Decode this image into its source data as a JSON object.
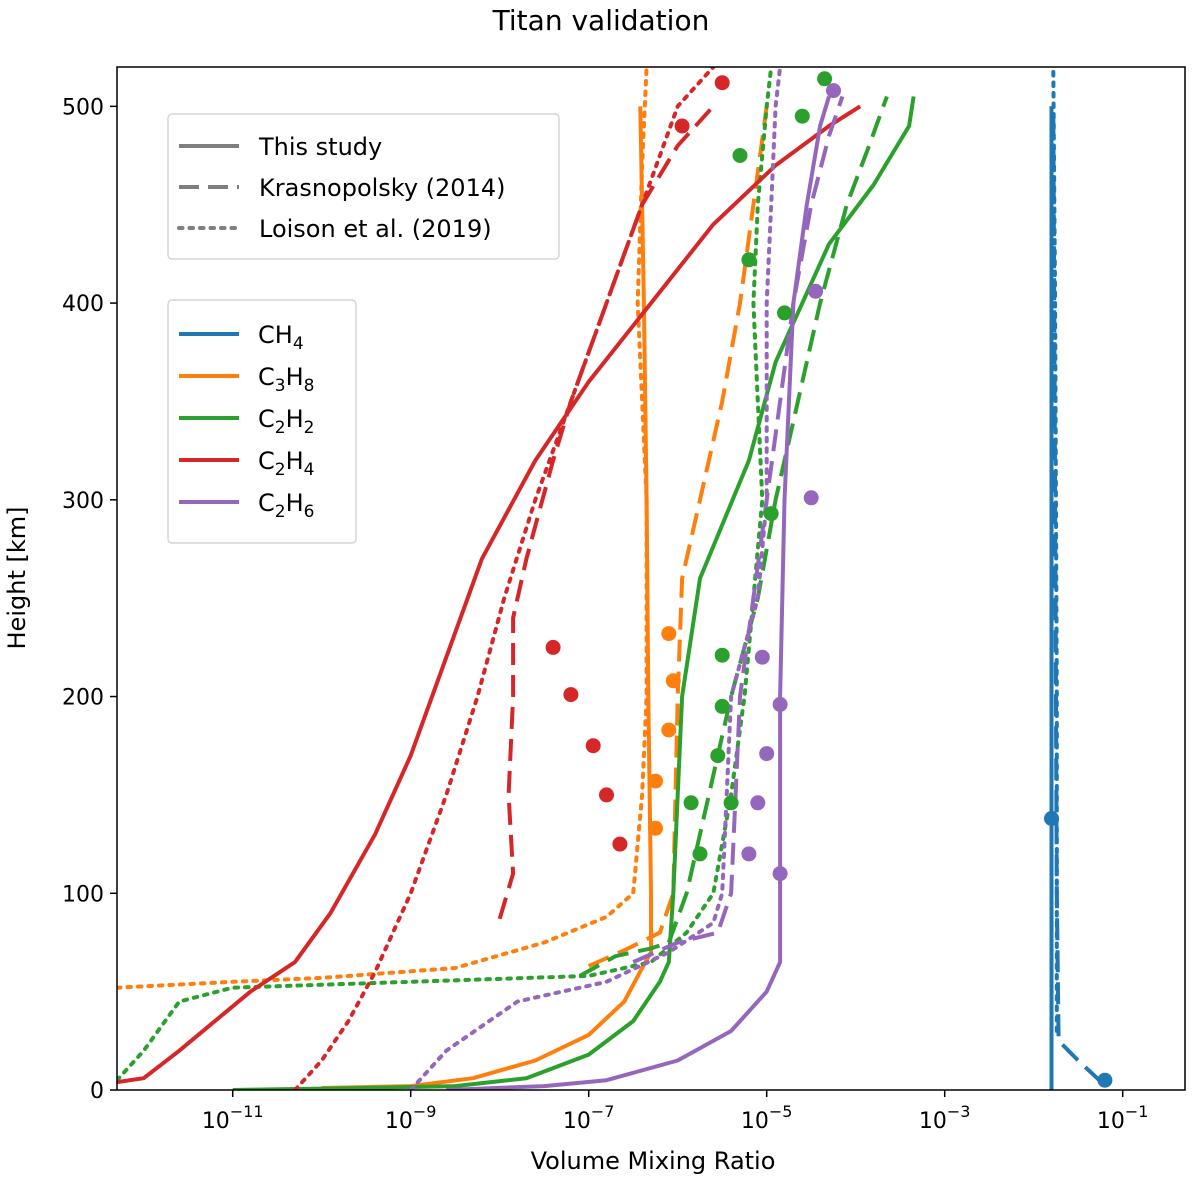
{
  "chart_data": {
    "type": "line",
    "title": "Titan validation",
    "xlabel": "Volume Mixing Ratio",
    "ylabel": "Height [km]",
    "xscale": "log",
    "xlim_log10": [
      -12.3,
      -0.3
    ],
    "ylim": [
      0,
      520
    ],
    "xticks": [
      {
        "log10": -11,
        "base": "10",
        "exp": "−11"
      },
      {
        "log10": -9,
        "base": "10",
        "exp": "−9"
      },
      {
        "log10": -7,
        "base": "10",
        "exp": "−7"
      },
      {
        "log10": -5,
        "base": "10",
        "exp": "−5"
      },
      {
        "log10": -3,
        "base": "10",
        "exp": "−3"
      },
      {
        "log10": -1,
        "base": "10",
        "exp": "−1"
      }
    ],
    "yticks": [
      0,
      100,
      200,
      300,
      400,
      500
    ],
    "style_legend": {
      "placement": "upper-left",
      "items": [
        {
          "label": "This study",
          "style": "solid"
        },
        {
          "label": "Krasnopolsky (2014)",
          "style": "dashed"
        },
        {
          "label": "Loison et al. (2019)",
          "style": "dotted"
        }
      ]
    },
    "species_legend": {
      "placement": "upper-left",
      "items": [
        {
          "label": "CH4",
          "main": "CH",
          "sub1": "4",
          "mid": "",
          "sub2": "",
          "color": "#1f77b4"
        },
        {
          "label": "C3H8",
          "main": "C",
          "sub1": "3",
          "mid": "H",
          "sub2": "8",
          "color": "#ff7f0e"
        },
        {
          "label": "C2H2",
          "main": "C",
          "sub1": "2",
          "mid": "H",
          "sub2": "2",
          "color": "#2ca02c"
        },
        {
          "label": "C2H4",
          "main": "C",
          "sub1": "2",
          "mid": "H",
          "sub2": "4",
          "color": "#d62728"
        },
        {
          "label": "C2H6",
          "main": "C",
          "sub1": "2",
          "mid": "H",
          "sub2": "6",
          "color": "#9467bd"
        }
      ]
    },
    "series": [
      {
        "name": "CH4 - This study",
        "species": "CH4",
        "color": "#1f77b4",
        "style": "solid",
        "points": [
          [
            -1.8,
            0
          ],
          [
            -1.8,
            100
          ],
          [
            -1.8,
            300
          ],
          [
            -1.8,
            500
          ]
        ]
      },
      {
        "name": "CH4 - Krasnopolsky (2014)",
        "species": "CH4",
        "color": "#1f77b4",
        "style": "dashed",
        "points": [
          [
            -1.24,
            4
          ],
          [
            -1.5,
            15
          ],
          [
            -1.72,
            25
          ],
          [
            -1.74,
            100
          ],
          [
            -1.76,
            300
          ],
          [
            -1.78,
            500
          ]
        ]
      },
      {
        "name": "CH4 - Loison et al. (2019)",
        "species": "CH4",
        "color": "#1f77b4",
        "style": "dotted",
        "points": [
          [
            -1.74,
            30
          ],
          [
            -1.74,
            200
          ],
          [
            -1.76,
            400
          ],
          [
            -1.78,
            520
          ]
        ]
      },
      {
        "name": "C3H8 - This study",
        "species": "C3H8",
        "color": "#ff7f0e",
        "style": "solid",
        "points": [
          [
            -10,
            1
          ],
          [
            -9,
            2
          ],
          [
            -8.3,
            6
          ],
          [
            -7.6,
            15
          ],
          [
            -7.0,
            28
          ],
          [
            -6.6,
            45
          ],
          [
            -6.4,
            62
          ],
          [
            -6.3,
            70
          ],
          [
            -6.3,
            100
          ],
          [
            -6.33,
            200
          ],
          [
            -6.35,
            300
          ],
          [
            -6.38,
            400
          ],
          [
            -6.42,
            500
          ]
        ]
      },
      {
        "name": "C3H8 - Krasnopolsky (2014)",
        "species": "C3H8",
        "color": "#ff7f0e",
        "style": "dashed",
        "points": [
          [
            -7.0,
            63
          ],
          [
            -6.6,
            71
          ],
          [
            -6.2,
            80
          ],
          [
            -6.05,
            100
          ],
          [
            -6.0,
            200
          ],
          [
            -5.95,
            260
          ],
          [
            -5.75,
            300
          ],
          [
            -5.5,
            350
          ],
          [
            -5.3,
            400
          ],
          [
            -5.15,
            450
          ],
          [
            -5.0,
            500
          ]
        ]
      },
      {
        "name": "C3H8 - Loison et al. (2019)",
        "species": "C3H8",
        "color": "#ff7f0e",
        "style": "dotted",
        "points": [
          [
            -12.3,
            52
          ],
          [
            -11,
            55
          ],
          [
            -10,
            57
          ],
          [
            -8.5,
            62
          ],
          [
            -7.5,
            75
          ],
          [
            -6.8,
            88
          ],
          [
            -6.5,
            100
          ],
          [
            -6.4,
            150
          ],
          [
            -6.35,
            200
          ],
          [
            -6.35,
            300
          ],
          [
            -6.45,
            400
          ],
          [
            -6.4,
            470
          ],
          [
            -6.35,
            520
          ]
        ]
      },
      {
        "name": "C2H2 - This study",
        "species": "C2H2",
        "color": "#2ca02c",
        "style": "solid",
        "points": [
          [
            -11,
            0
          ],
          [
            -9.5,
            1
          ],
          [
            -8.5,
            2
          ],
          [
            -7.7,
            6
          ],
          [
            -7.0,
            18
          ],
          [
            -6.5,
            35
          ],
          [
            -6.2,
            55
          ],
          [
            -6.1,
            65
          ],
          [
            -6.05,
            100
          ],
          [
            -5.95,
            200
          ],
          [
            -5.75,
            260
          ],
          [
            -5.2,
            320
          ],
          [
            -4.9,
            370
          ],
          [
            -4.6,
            400
          ],
          [
            -4.3,
            430
          ],
          [
            -3.8,
            460
          ],
          [
            -3.4,
            490
          ],
          [
            -3.35,
            505
          ]
        ]
      },
      {
        "name": "C2H2 - Krasnopolsky (2014)",
        "species": "C2H2",
        "color": "#2ca02c",
        "style": "dashed",
        "points": [
          [
            -7.1,
            58
          ],
          [
            -6.7,
            68
          ],
          [
            -6.3,
            72
          ],
          [
            -6.1,
            75
          ],
          [
            -5.9,
            100
          ],
          [
            -5.65,
            150
          ],
          [
            -5.4,
            200
          ],
          [
            -5.1,
            250
          ],
          [
            -4.9,
            300
          ],
          [
            -4.65,
            350
          ],
          [
            -4.4,
            400
          ],
          [
            -4.1,
            450
          ],
          [
            -3.85,
            480
          ],
          [
            -3.65,
            505
          ]
        ]
      },
      {
        "name": "C2H2 - Loison et al. (2019)",
        "species": "C2H2",
        "color": "#2ca02c",
        "style": "dotted",
        "points": [
          [
            -12.3,
            5
          ],
          [
            -12,
            20
          ],
          [
            -11.6,
            45
          ],
          [
            -11,
            52
          ],
          [
            -9,
            55
          ],
          [
            -7,
            58
          ],
          [
            -6.3,
            65
          ],
          [
            -5.9,
            80
          ],
          [
            -5.6,
            100
          ],
          [
            -5.4,
            150
          ],
          [
            -5.25,
            200
          ],
          [
            -5.15,
            250
          ],
          [
            -5.05,
            300
          ],
          [
            -5.1,
            350
          ],
          [
            -5.15,
            400
          ],
          [
            -5.1,
            450
          ],
          [
            -5.0,
            500
          ],
          [
            -4.95,
            520
          ]
        ]
      },
      {
        "name": "C2H4 - This study",
        "species": "C2H4",
        "color": "#d62728",
        "style": "solid",
        "points": [
          [
            -12.3,
            4
          ],
          [
            -12,
            6
          ],
          [
            -11.6,
            20
          ],
          [
            -11.2,
            35
          ],
          [
            -10.8,
            50
          ],
          [
            -10.3,
            65
          ],
          [
            -9.9,
            90
          ],
          [
            -9.4,
            130
          ],
          [
            -9.0,
            170
          ],
          [
            -8.6,
            220
          ],
          [
            -8.2,
            270
          ],
          [
            -7.6,
            320
          ],
          [
            -7.0,
            360
          ],
          [
            -6.3,
            400
          ],
          [
            -5.6,
            440
          ],
          [
            -4.9,
            470
          ],
          [
            -4.3,
            490
          ],
          [
            -3.95,
            500
          ]
        ]
      },
      {
        "name": "C2H4 - Krasnopolsky (2014)",
        "species": "C2H4",
        "color": "#d62728",
        "style": "dashed",
        "points": [
          [
            -8.0,
            87
          ],
          [
            -7.85,
            110
          ],
          [
            -7.9,
            150
          ],
          [
            -7.85,
            200
          ],
          [
            -7.85,
            240
          ],
          [
            -7.7,
            270
          ],
          [
            -7.4,
            320
          ],
          [
            -7.2,
            350
          ],
          [
            -6.8,
            400
          ],
          [
            -6.4,
            450
          ],
          [
            -6.0,
            480
          ],
          [
            -5.6,
            500
          ]
        ]
      },
      {
        "name": "C2H4 - Loison et al. (2019)",
        "species": "C2H4",
        "color": "#d62728",
        "style": "dotted",
        "points": [
          [
            -10.3,
            0
          ],
          [
            -10.0,
            15
          ],
          [
            -9.7,
            35
          ],
          [
            -9.4,
            60
          ],
          [
            -9.0,
            100
          ],
          [
            -8.6,
            150
          ],
          [
            -8.25,
            200
          ],
          [
            -7.95,
            250
          ],
          [
            -7.6,
            300
          ],
          [
            -7.2,
            350
          ],
          [
            -6.8,
            400
          ],
          [
            -6.4,
            450
          ],
          [
            -6.0,
            500
          ],
          [
            -5.6,
            520
          ]
        ]
      },
      {
        "name": "C2H6 - This study",
        "species": "C2H6",
        "color": "#9467bd",
        "style": "solid",
        "points": [
          [
            -8.6,
            0
          ],
          [
            -7.5,
            2
          ],
          [
            -6.8,
            5
          ],
          [
            -6.0,
            15
          ],
          [
            -5.4,
            30
          ],
          [
            -5.0,
            50
          ],
          [
            -4.85,
            65
          ],
          [
            -4.85,
            100
          ],
          [
            -4.85,
            200
          ],
          [
            -4.8,
            300
          ],
          [
            -4.7,
            400
          ],
          [
            -4.55,
            450
          ],
          [
            -4.4,
            490
          ],
          [
            -4.3,
            505
          ]
        ]
      },
      {
        "name": "C2H6 - Krasnopolsky (2014)",
        "species": "C2H6",
        "color": "#9467bd",
        "style": "dashed",
        "points": [
          [
            -6.5,
            65
          ],
          [
            -6.0,
            75
          ],
          [
            -5.55,
            80
          ],
          [
            -5.4,
            100
          ],
          [
            -5.35,
            150
          ],
          [
            -5.3,
            200
          ],
          [
            -5.15,
            250
          ],
          [
            -5.0,
            300
          ],
          [
            -4.85,
            350
          ],
          [
            -4.7,
            400
          ],
          [
            -4.5,
            450
          ],
          [
            -4.3,
            485
          ],
          [
            -4.15,
            505
          ]
        ]
      },
      {
        "name": "C2H6 - Loison et al. (2019)",
        "species": "C2H6",
        "color": "#9467bd",
        "style": "dotted",
        "points": [
          [
            -9.0,
            0
          ],
          [
            -8.6,
            20
          ],
          [
            -7.8,
            45
          ],
          [
            -6.8,
            55
          ],
          [
            -6.1,
            70
          ],
          [
            -5.6,
            85
          ],
          [
            -5.5,
            100
          ],
          [
            -5.45,
            150
          ],
          [
            -5.4,
            200
          ],
          [
            -5.1,
            250
          ],
          [
            -5.0,
            300
          ],
          [
            -5.0,
            350
          ],
          [
            -5.0,
            400
          ],
          [
            -4.95,
            450
          ],
          [
            -4.9,
            500
          ],
          [
            -4.85,
            520
          ]
        ]
      }
    ],
    "observations": [
      {
        "species": "CH4",
        "color": "#1f77b4",
        "points": [
          [
            -1.8,
            138
          ],
          [
            -1.2,
            5
          ]
        ]
      },
      {
        "species": "C3H8",
        "color": "#ff7f0e",
        "points": [
          [
            -6.1,
            232
          ],
          [
            -6.05,
            208
          ],
          [
            -6.1,
            183
          ],
          [
            -6.25,
            157
          ],
          [
            -6.25,
            133
          ]
        ]
      },
      {
        "species": "C2H2",
        "color": "#2ca02c",
        "points": [
          [
            -4.35,
            514
          ],
          [
            -4.6,
            495
          ],
          [
            -5.3,
            475
          ],
          [
            -5.2,
            422
          ],
          [
            -4.8,
            395
          ],
          [
            -4.95,
            293
          ],
          [
            -5.5,
            221
          ],
          [
            -5.5,
            195
          ],
          [
            -5.55,
            170
          ],
          [
            -5.85,
            146
          ],
          [
            -5.4,
            146
          ],
          [
            -5.75,
            120
          ]
        ]
      },
      {
        "species": "C2H4",
        "color": "#d62728",
        "points": [
          [
            -5.95,
            490
          ],
          [
            -5.5,
            512
          ],
          [
            -7.4,
            225
          ],
          [
            -7.2,
            201
          ],
          [
            -6.95,
            175
          ],
          [
            -6.8,
            150
          ],
          [
            -6.65,
            125
          ]
        ]
      },
      {
        "species": "C2H6",
        "color": "#9467bd",
        "points": [
          [
            -4.25,
            508
          ],
          [
            -4.45,
            406
          ],
          [
            -4.5,
            301
          ],
          [
            -5.05,
            220
          ],
          [
            -4.85,
            196
          ],
          [
            -5.0,
            171
          ],
          [
            -5.1,
            146
          ],
          [
            -5.2,
            120
          ],
          [
            -4.85,
            110
          ]
        ]
      }
    ]
  }
}
